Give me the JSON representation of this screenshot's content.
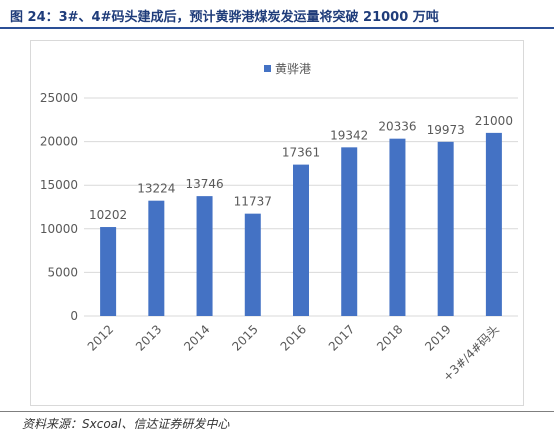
{
  "figure": {
    "title": "图 24：3#、4#码头建成后，预计黄骅港煤炭发运量将突破 21000 万吨",
    "source": "资料来源：Sxcoal、信达证券研发中心"
  },
  "chart_data": {
    "type": "bar",
    "categories": [
      "2012",
      "2013",
      "2014",
      "2015",
      "2016",
      "2017",
      "2018",
      "2019",
      "+3#/4#码头"
    ],
    "series": [
      {
        "name": "黄骅港",
        "values": [
          10202,
          13224,
          13746,
          11737,
          17361,
          19342,
          20336,
          19973,
          21000
        ]
      }
    ],
    "ylim": [
      0,
      25000
    ],
    "yticks": [
      0,
      5000,
      10000,
      15000,
      20000,
      25000
    ],
    "grid": true,
    "legend_position": "top-center",
    "data_labels": true,
    "colors": {
      "bar": "#4472c4",
      "grid": "#d9d9d9",
      "text": "#595959"
    }
  }
}
